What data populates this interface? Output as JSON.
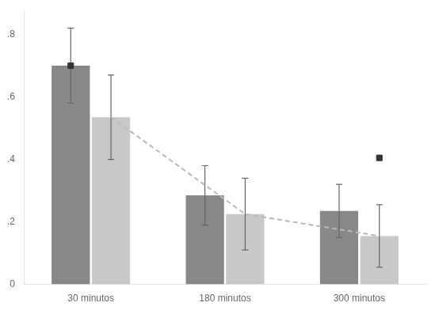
{
  "chart_data": {
    "type": "bar",
    "categories": [
      "30 minutos",
      "180 minutos",
      "300 minutos"
    ],
    "series": [
      {
        "color": "#888888",
        "values": [
          0.7,
          0.285,
          0.235
        ],
        "errors": [
          0.12,
          0.095,
          0.085
        ]
      },
      {
        "color": "#c8c8c8",
        "values": [
          0.535,
          0.225,
          0.155
        ],
        "errors": [
          0.135,
          0.115,
          0.1
        ]
      },
      {
        "type": "line",
        "line_style": "dashed",
        "color": "#b8b8b8",
        "values": [
          0.535,
          0.225,
          0.155
        ]
      },
      {
        "type": "scatter",
        "marker": "square",
        "color": "#333333",
        "values": [
          0.7,
          null,
          0.405
        ]
      }
    ],
    "ylim": [
      0,
      0.88
    ],
    "yticks": [
      0,
      {
        "value": 0.2,
        "label": ".2"
      },
      {
        "value": 0.4,
        "label": ".4"
      },
      {
        "value": 0.6,
        "label": ".6"
      },
      {
        "value": 0.8,
        "label": ".8"
      }
    ],
    "grid": false
  }
}
